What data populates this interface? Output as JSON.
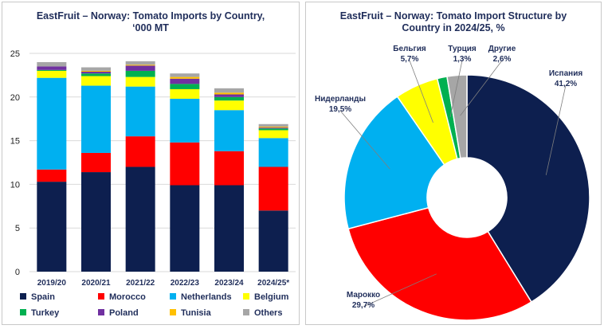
{
  "left_chart": {
    "title_line1": "EastFruit –  Norway: Tomato Imports by Country,",
    "title_line2": "‘000 MT"
  },
  "right_chart": {
    "title_line1": "EastFruit – Norway: Tomato Import Structure by",
    "title_line2": "Country in 2024/25, %"
  },
  "chart_data": [
    {
      "type": "bar",
      "stacked": true,
      "title": "EastFruit –  Norway: Tomato Imports by Country, ‘000 MT",
      "categories": [
        "2019/20",
        "2020/21",
        "2021/22",
        "2022/23",
        "2023/24",
        "2024/25*"
      ],
      "ylim": [
        0,
        25
      ],
      "yticks": [
        0,
        5,
        10,
        15,
        20,
        25
      ],
      "grid": true,
      "legend_position": "bottom",
      "series": [
        {
          "name": "Spain",
          "color": "#0d1f4f",
          "values": [
            10.3,
            11.4,
            12.0,
            9.9,
            9.9,
            7.0
          ]
        },
        {
          "name": "Morocco",
          "color": "#ff0000",
          "values": [
            1.4,
            2.2,
            3.5,
            4.9,
            3.9,
            5.0
          ]
        },
        {
          "name": "Netherlands",
          "color": "#00b0f0",
          "values": [
            10.5,
            7.7,
            5.7,
            5.0,
            4.7,
            3.3
          ]
        },
        {
          "name": "Belgium",
          "color": "#ffff00",
          "values": [
            0.8,
            1.1,
            1.1,
            1.1,
            1.1,
            0.9
          ]
        },
        {
          "name": "Turkey",
          "color": "#00b050",
          "values": [
            0.1,
            0.3,
            0.7,
            0.6,
            0.4,
            0.2
          ]
        },
        {
          "name": "Poland",
          "color": "#7030a0",
          "values": [
            0.4,
            0.2,
            0.6,
            0.6,
            0.3,
            0.1
          ]
        },
        {
          "name": "Tunisia",
          "color": "#ffc000",
          "values": [
            0.0,
            0.1,
            0.1,
            0.2,
            0.2,
            0.1
          ]
        },
        {
          "name": "Others",
          "color": "#a6a6a6",
          "values": [
            0.5,
            0.4,
            0.4,
            0.4,
            0.5,
            0.3
          ]
        }
      ]
    },
    {
      "type": "pie",
      "donut": true,
      "title": "EastFruit – Norway: Tomato Import Structure by Country in 2024/25, %",
      "slices": [
        {
          "name": "Испания",
          "label": "41,2%",
          "value": 41.2,
          "color": "#0d1f4f"
        },
        {
          "name": "Марокко",
          "label": "29,7%",
          "value": 29.7,
          "color": "#ff0000"
        },
        {
          "name": "Нидерланды",
          "label": "19,5%",
          "value": 19.5,
          "color": "#00b0f0"
        },
        {
          "name": "Бельгия",
          "label": "5,7%",
          "value": 5.7,
          "color": "#ffff00"
        },
        {
          "name": "Турция",
          "label": "1,3%",
          "value": 1.3,
          "color": "#00b050"
        },
        {
          "name": "Другие",
          "label": "2,6%",
          "value": 2.6,
          "color": "#a6a6a6"
        }
      ]
    }
  ]
}
